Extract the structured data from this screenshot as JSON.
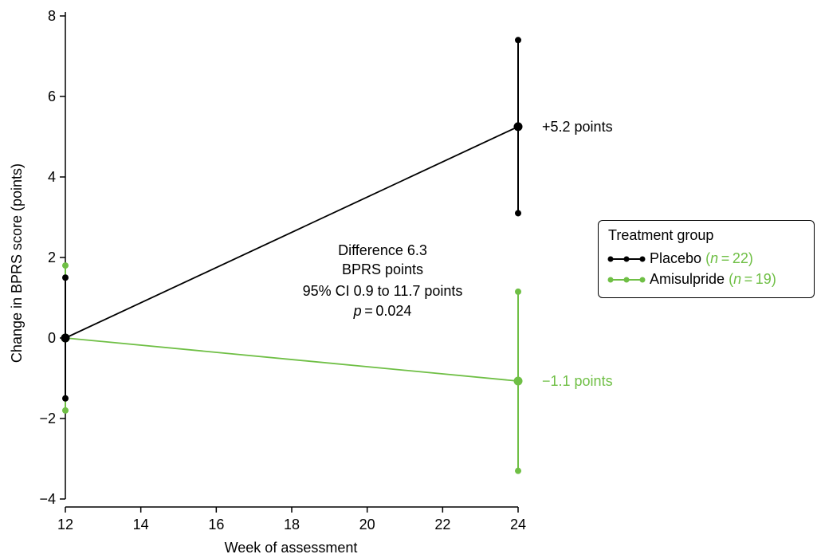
{
  "chart_data": {
    "type": "line",
    "xlabel": "Week of assessment",
    "ylabel": "Change in BPRS score (points)",
    "xlim": [
      12,
      24
    ],
    "ylim": [
      -4,
      8
    ],
    "x_ticks": [
      12,
      14,
      16,
      18,
      20,
      22,
      24
    ],
    "y_ticks": [
      -4,
      -2,
      0,
      2,
      4,
      6,
      8
    ],
    "y_tick_labels": [
      "−4",
      "−2",
      "0",
      "2",
      "4",
      "6",
      "8"
    ],
    "x": [
      12,
      24
    ],
    "series": [
      {
        "name": "Placebo",
        "n_label": "(n = 22)",
        "color": "#000000",
        "values": [
          0,
          5.25
        ],
        "ci_lower": [
          -1.5,
          3.1
        ],
        "ci_upper": [
          1.5,
          7.4
        ],
        "end_label": "+5.2 points"
      },
      {
        "name": "Amisulpride",
        "n_label": "(n = 19)",
        "color": "#6fbf45",
        "values": [
          0,
          -1.07
        ],
        "ci_lower": [
          -1.8,
          -3.3
        ],
        "ci_upper": [
          1.8,
          1.15
        ],
        "end_label": "−1.1 points"
      }
    ],
    "annotation": [
      "Difference 6.3",
      "BPRS points",
      "95% CI 0.9 to 11.7 points",
      "p = 0.024"
    ],
    "legend": {
      "title": "Treatment group",
      "placement": "right"
    },
    "grid": false
  }
}
